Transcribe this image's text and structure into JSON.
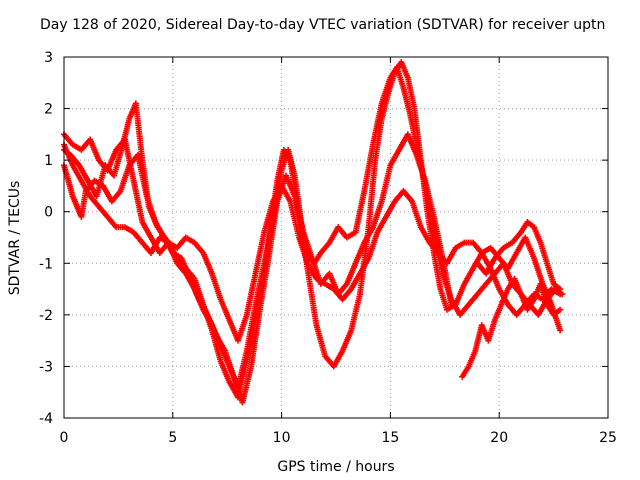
{
  "chart_data": {
    "type": "scatter",
    "title": "Day 128 of 2020, Sidereal Day-to-day VTEC variation (SDTVAR) for receiver uptn",
    "xlabel": "GPS time / hours",
    "ylabel": "SDTVAR / TECUs",
    "xlim": [
      0,
      25
    ],
    "ylim": [
      -4,
      3
    ],
    "xticks": [
      0,
      5,
      10,
      15,
      20,
      25
    ],
    "yticks": [
      -4,
      -3,
      -2,
      -1,
      0,
      1,
      2,
      3
    ],
    "xtick_labels": [
      "0",
      "5",
      "10",
      "15",
      "20",
      "25"
    ],
    "ytick_labels": [
      "-4",
      "-3",
      "-2",
      "-1",
      "0",
      "1",
      "2",
      "3"
    ],
    "grid": true,
    "marker": "+",
    "series_color": "#ff0000",
    "series": [
      {
        "name": "trace-1",
        "x": [
          0.0,
          0.3,
          0.7,
          1.1,
          1.5,
          1.9,
          2.3,
          2.7,
          3.0,
          3.3,
          3.6,
          3.9,
          4.3,
          4.8,
          5.2,
          5.6,
          6.0,
          6.4,
          6.8,
          7.2,
          7.6,
          8.0,
          8.4,
          8.8,
          9.2,
          9.5,
          9.8,
          10.1,
          10.4,
          10.7,
          11.0,
          11.3,
          11.6,
          12.0,
          12.4,
          12.8,
          13.2,
          13.6,
          14.0,
          14.3,
          14.6,
          14.9,
          15.2,
          15.5,
          15.8,
          16.1,
          16.4,
          16.7,
          17.0,
          17.3,
          17.6,
          18.0,
          18.4,
          18.8,
          19.2,
          19.6,
          20.0,
          20.4,
          20.8,
          21.2,
          21.6,
          22.0,
          22.4,
          22.8
        ],
        "y": [
          1.2,
          1.1,
          0.9,
          0.6,
          0.3,
          0.9,
          0.7,
          1.3,
          1.8,
          2.1,
          1.0,
          0.1,
          -0.3,
          -0.6,
          -0.9,
          -1.1,
          -1.3,
          -1.8,
          -2.3,
          -2.9,
          -3.3,
          -3.6,
          -2.9,
          -2.1,
          -1.2,
          -0.3,
          0.6,
          1.2,
          1.0,
          0.2,
          -0.6,
          -1.4,
          -2.2,
          -2.8,
          -3.0,
          -2.7,
          -2.3,
          -1.6,
          -0.3,
          1.0,
          1.8,
          2.3,
          2.7,
          2.9,
          2.6,
          2.0,
          1.0,
          0.0,
          -0.8,
          -1.5,
          -1.9,
          -1.8,
          -1.4,
          -1.1,
          -0.8,
          -0.7,
          -0.9,
          -1.1,
          -0.8,
          -0.5,
          -0.9,
          -1.4,
          -1.8,
          -2.3
        ]
      },
      {
        "name": "trace-2",
        "x": [
          0.0,
          0.4,
          0.8,
          1.2,
          1.6,
          2.0,
          2.4,
          2.8,
          3.2,
          3.6,
          4.0,
          4.4,
          4.8,
          5.2,
          5.6,
          6.0,
          6.4,
          6.8,
          7.2,
          7.6,
          8.0,
          8.4,
          8.8,
          9.2,
          9.6,
          10.0,
          10.3,
          10.6,
          10.9,
          11.2,
          11.5,
          11.8,
          12.2,
          12.6,
          13.0,
          13.4,
          13.8,
          14.2,
          14.6,
          15.0,
          15.3,
          15.6,
          15.9,
          16.2,
          16.5,
          16.8,
          17.1,
          17.4,
          17.8,
          18.2,
          18.6,
          19.0,
          19.4,
          19.8,
          20.2,
          20.6,
          21.0,
          21.4,
          21.8,
          22.2,
          22.6,
          22.9
        ],
        "y": [
          1.5,
          1.3,
          1.2,
          1.4,
          1.0,
          0.8,
          1.2,
          1.4,
          0.6,
          -0.2,
          -0.5,
          -0.8,
          -0.6,
          -1.0,
          -1.2,
          -1.5,
          -1.9,
          -2.2,
          -2.6,
          -3.0,
          -3.4,
          -2.7,
          -1.8,
          -1.0,
          -0.2,
          0.8,
          1.2,
          0.7,
          -0.2,
          -0.8,
          -1.0,
          -0.8,
          -0.6,
          -0.3,
          -0.5,
          -0.4,
          0.4,
          1.3,
          2.1,
          2.6,
          2.8,
          2.4,
          1.9,
          1.3,
          0.7,
          0.1,
          -0.6,
          -1.2,
          -1.7,
          -2.0,
          -1.8,
          -1.6,
          -1.4,
          -1.2,
          -1.0,
          -1.4,
          -1.6,
          -1.8,
          -2.0,
          -1.7,
          -1.5,
          -1.6
        ]
      },
      {
        "name": "trace-3",
        "x": [
          0.0,
          0.4,
          0.8,
          1.2,
          1.6,
          2.0,
          2.4,
          2.8,
          3.2,
          3.6,
          4.0,
          4.4,
          4.8,
          5.2,
          5.6,
          6.0,
          6.4,
          6.8,
          7.2,
          7.6,
          8.0,
          8.4,
          8.8,
          9.2,
          9.6,
          10.0,
          10.4,
          10.8,
          11.2,
          11.6,
          12.0,
          12.4,
          12.8,
          13.2,
          13.6,
          14.0,
          14.4,
          14.8,
          15.2,
          15.6,
          16.0,
          16.4,
          16.8,
          17.2,
          17.6,
          18.0,
          18.4,
          18.8,
          19.2,
          19.6,
          20.0,
          20.4,
          20.8,
          21.2,
          21.6,
          22.0,
          22.4,
          22.8
        ],
        "y": [
          1.3,
          0.9,
          0.6,
          0.3,
          0.1,
          -0.1,
          -0.3,
          -0.3,
          -0.4,
          -0.6,
          -0.8,
          -0.5,
          -0.6,
          -0.7,
          -0.5,
          -0.6,
          -0.8,
          -1.2,
          -1.7,
          -2.1,
          -2.5,
          -2.0,
          -1.2,
          -0.4,
          0.2,
          0.5,
          0.2,
          -0.5,
          -1.0,
          -1.3,
          -1.4,
          -1.5,
          -1.7,
          -1.5,
          -1.2,
          -0.9,
          -0.4,
          -0.1,
          0.2,
          0.4,
          0.2,
          -0.3,
          -0.6,
          -0.8,
          -1.0,
          -0.7,
          -0.6,
          -0.6,
          -0.8,
          -1.1,
          -1.5,
          -1.8,
          -2.0,
          -1.8,
          -1.6,
          -1.7,
          -1.5,
          -1.6
        ]
      },
      {
        "name": "trace-4",
        "x": [
          0.0,
          0.2,
          0.4,
          0.6,
          0.8,
          1.0,
          1.4,
          1.8,
          2.2,
          2.6,
          3.0,
          3.4,
          3.8,
          4.2,
          4.6,
          5.0,
          5.4,
          5.8,
          6.2,
          6.6,
          7.0,
          7.4,
          7.8,
          8.2,
          8.6,
          9.0,
          9.4,
          9.8,
          10.2,
          10.6,
          11.0,
          11.4,
          11.8,
          12.2,
          12.6,
          13.0,
          13.4,
          13.8,
          14.2,
          14.6,
          15.0,
          15.4,
          15.8,
          16.2,
          16.6,
          17.0,
          17.4,
          17.8
        ],
        "y": [
          0.9,
          0.6,
          0.3,
          0.1,
          -0.1,
          0.4,
          0.6,
          0.5,
          0.2,
          0.4,
          0.9,
          1.1,
          0.3,
          -0.2,
          -0.5,
          -0.8,
          -0.9,
          -1.3,
          -1.7,
          -2.0,
          -2.4,
          -2.7,
          -3.2,
          -3.7,
          -3.0,
          -1.9,
          -0.9,
          0.2,
          0.7,
          0.3,
          -0.4,
          -0.9,
          -1.4,
          -1.2,
          -1.6,
          -1.4,
          -1.0,
          -0.6,
          -0.3,
          0.2,
          0.9,
          1.2,
          1.5,
          1.1,
          0.6,
          -0.1,
          -0.9,
          -1.8
        ]
      },
      {
        "name": "trace-5",
        "x": [
          18.3,
          18.6,
          18.9,
          19.2,
          19.5,
          19.8,
          20.1,
          20.4,
          20.7,
          21.0,
          21.3,
          21.6,
          21.9,
          22.2,
          22.5,
          22.8
        ],
        "y": [
          -3.2,
          -3.0,
          -2.7,
          -2.2,
          -2.5,
          -2.1,
          -1.8,
          -1.5,
          -1.3,
          -1.6,
          -1.9,
          -1.7,
          -1.4,
          -1.8,
          -2.0,
          -1.9
        ]
      },
      {
        "name": "trace-6",
        "x": [
          19.0,
          19.4,
          19.8,
          20.2,
          20.6,
          21.0,
          21.3,
          21.6,
          21.9,
          22.2,
          22.5,
          22.8
        ],
        "y": [
          -1.0,
          -1.2,
          -0.9,
          -0.7,
          -0.6,
          -0.4,
          -0.2,
          -0.3,
          -0.6,
          -1.0,
          -1.4,
          -1.5
        ]
      }
    ]
  }
}
